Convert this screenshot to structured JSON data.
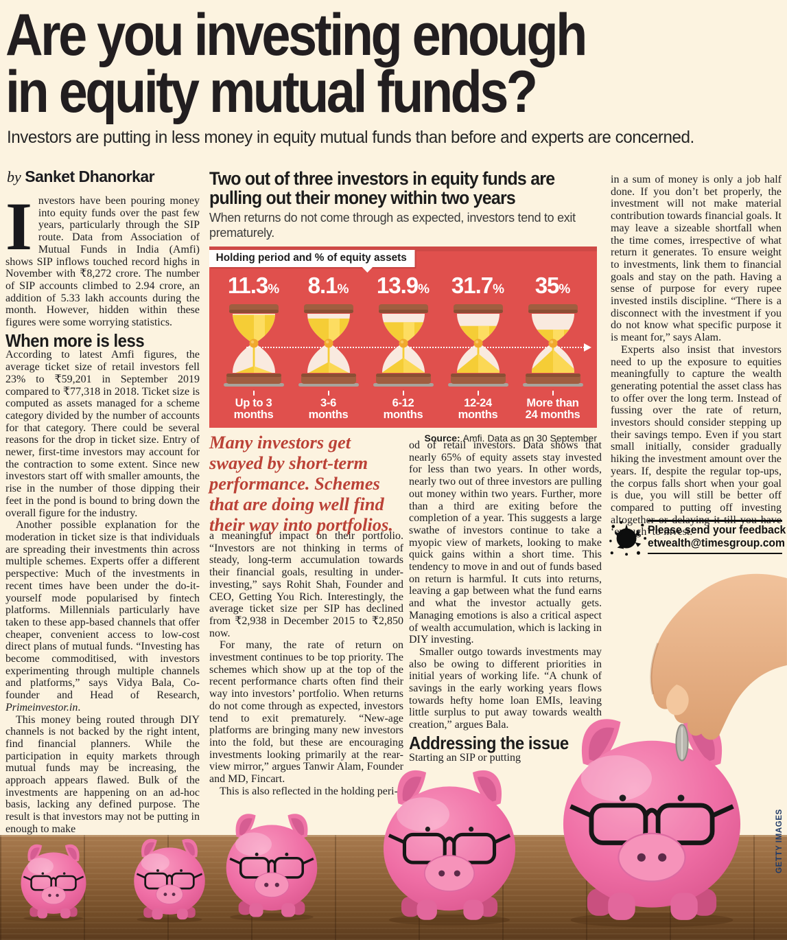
{
  "masthead": {
    "headline_line1": "Are you investing enough",
    "headline_line2": "in equity mutual funds?",
    "deck": "Investors are putting in less money in equity mutual funds than before and experts are concerned.",
    "byline_prefix": "by",
    "byline_author": "Sanket Dhanorkar"
  },
  "article": {
    "col1": {
      "dropcap": "I",
      "p1": "nvestors have been pouring money into equity funds over the past few years, particularly through the SIP route. Data from Association of Mutual Funds in India (Amfi) shows SIP inflows touched record highs in November with ₹8,272 crore. The number of SIP accounts climbed to 2.94 crore, an addition of 5.33 lakh accounts during the month. However, hidden within these figures were some worrying statistics.",
      "heading": "When more is less",
      "p2": "According to latest Amfi figures, the average ticket size of retail investors fell 23% to ₹59,201 in September 2019 compared to ₹77,318 in 2018. Ticket size is computed as assets managed for a scheme category divided by the number of accounts for that category. There could be several reasons for the drop in ticket size. Entry of newer, first-time investors may account for the contraction to some extent. Since new investors start off with smaller amounts, the rise in the number of those dipping their feet in the pond is bound to bring down the overall figure for the industry.",
      "p3_main": "Another possible explanation for the moderation in ticket size is that individuals are spreading their investments thin across multiple schemes. Experts offer a different perspective:  Much of the investments in recent times have been under the do-it-yourself mode popularised by fintech platforms. Millennials particularly have taken to these app-based channels that offer cheaper, convenient access to low-cost direct plans of mutual funds. “Investing has become commoditised, with investors experimenting through multiple channels and platforms,” says Vidya Bala, Co-founder and Head of Research, ",
      "p3_italic": "Primeinvestor.in",
      "p3_end": ".",
      "p4": "This money being routed through DIY channels is not backed by the right intent, find financial planners. While the participation in equity markets through mutual funds may be increasing, the approach appears flawed. Bulk of the investments are happening on an ad-hoc basis, lacking any defined purpose. The result is that investors may not be putting in enough to make"
    },
    "col2": {
      "p1": "a meaningful impact on their portfolio. “Investors are not thinking in terms of steady, long-term accumulation towards their financial goals, resulting in under-investing,” says Rohit Shah, Founder and CEO, Getting You Rich. Interestingly, the average ticket size per SIP has declined from ₹2,938 in December 2015 to ₹2,850 now.",
      "p2": "For many, the rate of return on investment continues to be top priority. The schemes which show up at the top of the recent performance charts often find their way into investors’ portfolio. When returns do not come through as expected, investors tend to exit prematurely. “New-age platforms are bringing many new investors into the fold, but these are encouraging investments looking primarily at the rear-view mirror,” argues Tanwir Alam, Founder and MD, Fincart.",
      "p3": "This is also reflected in the holding peri-"
    },
    "col3": {
      "p1": "od of retail investors. Data shows that nearly 65% of equity assets stay invested for less than two years. In other words, nearly two out of three investors are pulling out money within two years. Further, more than a third are exiting before the completion of a year. This suggests a large swathe of investors continue to take a myopic view of markets, looking to make quick gains within a short time. This tendency to move in and out of funds based on return is harmful. It cuts into returns, leaving a gap between what the fund earns and what the investor actually gets. Managing emotions is also a critical aspect of wealth accumulation, which is lacking in DIY investing.",
      "p2": "Smaller outgo towards investments may also be owing to different priorities in initial years of working life. “A chunk of savings in the early working years flows towards hefty home loan EMIs, leaving little surplus to put away towards wealth creation,” argues Bala.",
      "heading": "Addressing the issue",
      "p3": "Starting an SIP or putting"
    },
    "col4": {
      "p1": "in a sum of money is only a job half done. If you don’t bet properly, the investment will not make material contribution towards financial goals. It may leave a sizeable shortfall when the time comes, irrespective of what return it generates. To ensure weight to investments, link them to financial goals and stay on the path. Having a sense of purpose for every rupee invested instils discipline. “There is a disconnect with the investment if you do not know what specific purpose it is meant for,” says Alam.",
      "p2": "Experts also insist that investors need to up the exposure to equities meaningfully to capture the wealth generating potential the asset class has to offer over the long term. Instead of fussing over the rate of return, investors should consider stepping up their savings tempo. Even if you start small initially, consider gradually hiking the investment amount over the years. If, despite the regular top-ups, the corpus falls short when your goal is due, you will still be better off compared to putting off investing altogether or delaying it till you have ‘enough’ to invest."
    }
  },
  "pullquote": {
    "text": "Many investors get swayed by short-term performance. Schemes that are doing well find their way into portfolios."
  },
  "chart": {
    "title": "Two out of three investors in equity funds are pulling out their money within two years",
    "subtitle": "When returns do not come through as expected, investors tend to exit prematurely.",
    "badge": "Holding period and % of equity assets",
    "source_prefix": "Source:",
    "source_rest": "Amfi. Data as on 30 September"
  },
  "chart_data": {
    "type": "bar",
    "variant": "hourglass-pictogram-infographic",
    "title": "Two out of three investors in equity funds are pulling out their money within two years",
    "subtitle": "When returns do not come through as expected, investors tend to exit prematurely.",
    "series_label": "Holding period and % of equity assets",
    "categories": [
      "Up to 3 months",
      "3-6 months",
      "6-12 months",
      "12-24 months",
      "More than 24 months"
    ],
    "category_lines": [
      [
        "Up to 3",
        "months"
      ],
      [
        "3-6",
        "months"
      ],
      [
        "6-12",
        "months"
      ],
      [
        "12-24",
        "months"
      ],
      [
        "More than",
        "24 months"
      ]
    ],
    "values": [
      11.3,
      8.1,
      13.9,
      31.7,
      35
    ],
    "unit": "%",
    "source": "Source: Amfi. Data as on 30 September",
    "panel_color": "#e0504d",
    "value_color": "#ffffff",
    "legend_position": "top-left badge",
    "grid": false
  },
  "feedback": {
    "line1": "Please send your feedback to",
    "line2": "etwealth@timesgroup.com"
  },
  "photo": {
    "credit": "GETTY IMAGES"
  }
}
